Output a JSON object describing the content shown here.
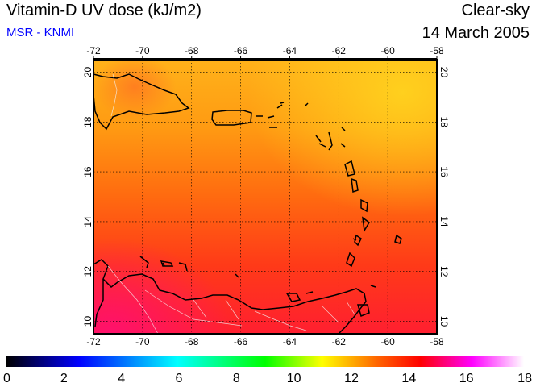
{
  "header": {
    "title": "Vitamin-D UV dose (kJ/m2)",
    "source": "MSR - KNMI",
    "condition": "Clear-sky",
    "date": "14 March 2005"
  },
  "map": {
    "lon_ticks": [
      "-72",
      "-70",
      "-68",
      "-66",
      "-64",
      "-62",
      "-60",
      "-58"
    ],
    "lat_ticks": [
      "10",
      "12",
      "14",
      "16",
      "18",
      "20"
    ],
    "lon_range": [
      -72,
      -58
    ],
    "lat_range": [
      9.5,
      20.5
    ]
  },
  "colorbar": {
    "ticks": [
      "0",
      "2",
      "4",
      "6",
      "8",
      "10",
      "12",
      "14",
      "16",
      "18"
    ],
    "range": [
      0,
      18
    ],
    "stops": [
      "#000000",
      "#0000ff",
      "#00ffff",
      "#00ff00",
      "#ffff00",
      "#ff0000",
      "#ff00ff",
      "#ffffff"
    ]
  }
}
